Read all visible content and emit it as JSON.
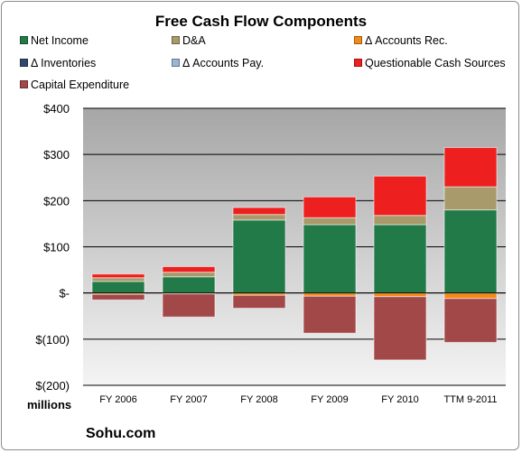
{
  "chart_data": {
    "type": "bar",
    "stacked": true,
    "title": "Free Cash Flow Components",
    "units_label": "millions",
    "source_label": "Sohu.com",
    "categories": [
      "FY 2006",
      "FY 2007",
      "FY 2008",
      "FY 2009",
      "FY 2010",
      "TTM 9-2011"
    ],
    "ylim": [
      -200,
      400
    ],
    "yticks": [
      400,
      300,
      200,
      100,
      0,
      -100,
      -200
    ],
    "ytick_labels": [
      "$400",
      "$300",
      "$200",
      "$100",
      "$-",
      "$(100)",
      "$(200)"
    ],
    "grid": true,
    "legend_position": "top",
    "series": [
      {
        "name": "Net Income",
        "color": "#217a47",
        "values": [
          25,
          35,
          158,
          148,
          148,
          180
        ]
      },
      {
        "name": "D&A",
        "color": "#a89a6a",
        "values": [
          8,
          10,
          12,
          15,
          20,
          50
        ]
      },
      {
        "name": "Δ Accounts Rec.",
        "color": "#f28a1b",
        "values": [
          -3,
          -2,
          -5,
          -7,
          -8,
          -12
        ]
      },
      {
        "name": "Δ Inventories",
        "color": "#2e4a6b",
        "values": [
          0,
          0,
          0,
          0,
          0,
          0
        ]
      },
      {
        "name": "Δ Accounts Pay.",
        "color": "#9db4d6",
        "values": [
          0,
          0,
          0,
          0,
          0,
          0
        ]
      },
      {
        "name": "Questionable Cash Sources",
        "color": "#ee1f1f",
        "values": [
          8,
          12,
          15,
          45,
          85,
          85
        ]
      },
      {
        "name": "Capital Expenditure",
        "color": "#a34848",
        "values": [
          -12,
          -50,
          -28,
          -80,
          -137,
          -95
        ]
      }
    ]
  }
}
